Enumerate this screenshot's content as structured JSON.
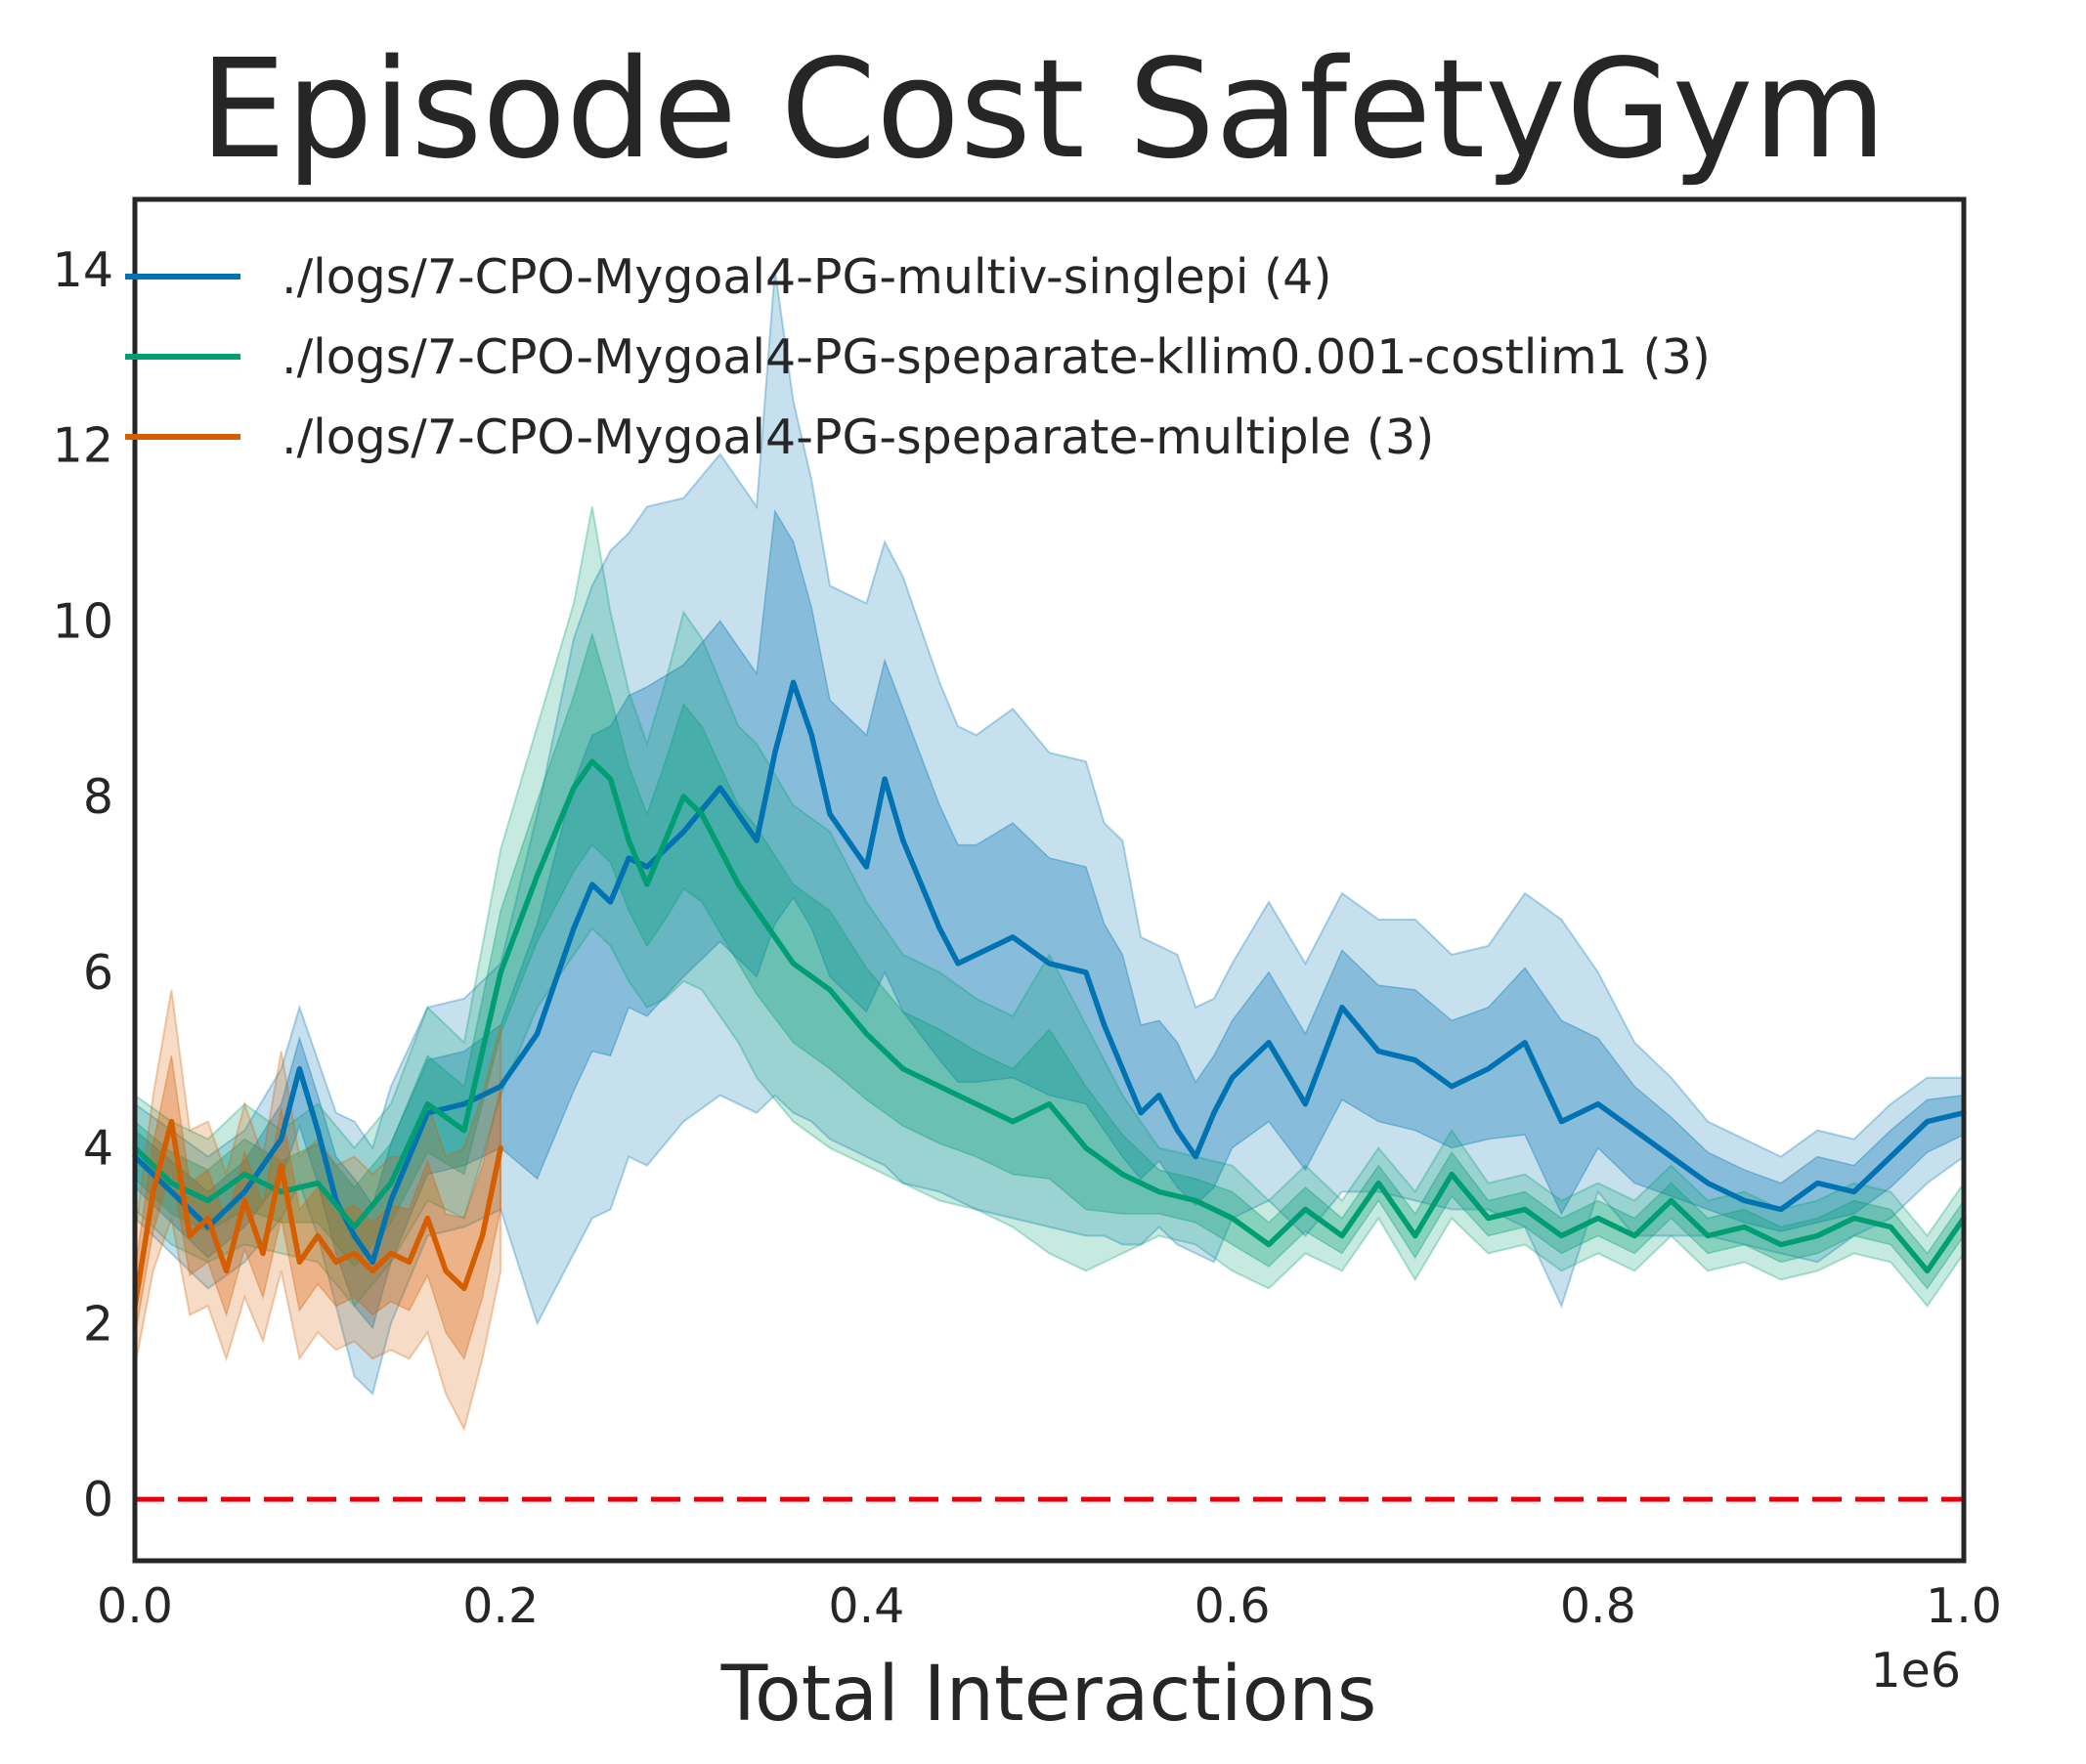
{
  "chart_data": {
    "type": "line",
    "title": "Episode Cost SafetyGym",
    "xlabel": "Total Interactions",
    "ylabel": "",
    "x_offset_label": "1e6",
    "xlim": [
      0.0,
      1.0
    ],
    "ylim": [
      -0.7,
      14.8
    ],
    "x_ticks": [
      "0.0",
      "0.2",
      "0.4",
      "0.6",
      "0.8",
      "1.0"
    ],
    "y_ticks": [
      "0",
      "2",
      "4",
      "6",
      "8",
      "10",
      "12",
      "14"
    ],
    "grid": false,
    "legend_position": "top-left",
    "reference_line": {
      "y": 0,
      "color": "#e8000b",
      "style": "dashed"
    },
    "series": [
      {
        "name": "./logs/7-CPO-Mygoal4-PG-multiv-singlepi (4)",
        "color": "#0173b2",
        "x": [
          0.0,
          0.02,
          0.04,
          0.06,
          0.08,
          0.09,
          0.1,
          0.11,
          0.12,
          0.13,
          0.14,
          0.16,
          0.18,
          0.2,
          0.22,
          0.24,
          0.25,
          0.26,
          0.27,
          0.28,
          0.3,
          0.32,
          0.34,
          0.35,
          0.36,
          0.37,
          0.38,
          0.4,
          0.41,
          0.42,
          0.44,
          0.45,
          0.46,
          0.48,
          0.5,
          0.52,
          0.53,
          0.54,
          0.55,
          0.56,
          0.57,
          0.58,
          0.59,
          0.6,
          0.62,
          0.64,
          0.66,
          0.68,
          0.7,
          0.72,
          0.74,
          0.76,
          0.78,
          0.8,
          0.82,
          0.84,
          0.86,
          0.88,
          0.9,
          0.92,
          0.94,
          0.96,
          0.98,
          1.0
        ],
        "values": [
          3.9,
          3.5,
          3.1,
          3.5,
          4.1,
          4.9,
          4.2,
          3.4,
          3.0,
          2.7,
          3.4,
          4.4,
          4.5,
          4.7,
          5.3,
          6.5,
          7.0,
          6.8,
          7.3,
          7.2,
          7.6,
          8.1,
          7.5,
          8.5,
          9.3,
          8.7,
          7.8,
          7.2,
          8.2,
          7.5,
          6.5,
          6.1,
          6.2,
          6.4,
          6.1,
          6.0,
          5.4,
          4.9,
          4.4,
          4.6,
          4.2,
          3.9,
          4.4,
          4.8,
          5.2,
          4.5,
          5.6,
          5.1,
          5.0,
          4.7,
          4.9,
          5.2,
          4.3,
          4.5,
          4.2,
          3.9,
          3.6,
          3.4,
          3.3,
          3.6,
          3.5,
          3.9,
          4.3,
          4.4
        ],
        "lower": [
          3.2,
          2.8,
          2.4,
          2.7,
          3.2,
          3.6,
          3.0,
          2.2,
          1.4,
          1.2,
          2.0,
          3.0,
          3.1,
          3.3,
          2.0,
          2.8,
          3.2,
          3.3,
          3.9,
          3.8,
          4.3,
          4.6,
          4.4,
          4.6,
          4.4,
          4.3,
          4.1,
          3.9,
          3.8,
          3.6,
          3.5,
          3.4,
          3.3,
          3.2,
          3.1,
          3.0,
          3.0,
          2.9,
          2.9,
          3.1,
          2.9,
          2.8,
          2.7,
          3.2,
          3.4,
          3.0,
          3.5,
          3.5,
          3.4,
          3.3,
          3.3,
          3.1,
          2.2,
          3.5,
          3.0,
          3.0,
          3.0,
          2.9,
          2.8,
          2.7,
          3.0,
          3.2,
          3.6,
          3.9
        ],
        "upper": [
          4.5,
          4.2,
          3.9,
          4.2,
          4.9,
          5.6,
          5.0,
          4.4,
          4.3,
          4.0,
          4.7,
          5.6,
          5.7,
          6.1,
          7.8,
          9.8,
          10.4,
          10.8,
          11.0,
          11.3,
          11.4,
          11.9,
          11.3,
          14.0,
          12.5,
          11.6,
          10.4,
          10.2,
          10.9,
          10.5,
          9.3,
          8.8,
          8.7,
          9.0,
          8.5,
          8.4,
          7.7,
          7.5,
          6.4,
          6.3,
          6.2,
          5.6,
          5.7,
          6.1,
          6.8,
          6.1,
          6.9,
          6.6,
          6.6,
          6.2,
          6.3,
          6.9,
          6.6,
          6.0,
          5.2,
          4.8,
          4.3,
          4.1,
          3.9,
          4.2,
          4.1,
          4.5,
          4.8,
          4.8
        ]
      },
      {
        "name": "./logs/7-CPO-Mygoal4-PG-speparate-kllim0.001-costlim1 (3)",
        "color": "#029e73",
        "x": [
          0.0,
          0.02,
          0.04,
          0.06,
          0.08,
          0.1,
          0.12,
          0.14,
          0.16,
          0.18,
          0.2,
          0.22,
          0.23,
          0.24,
          0.25,
          0.26,
          0.27,
          0.28,
          0.29,
          0.3,
          0.31,
          0.32,
          0.33,
          0.34,
          0.36,
          0.38,
          0.4,
          0.42,
          0.44,
          0.46,
          0.48,
          0.5,
          0.52,
          0.54,
          0.56,
          0.58,
          0.6,
          0.62,
          0.64,
          0.66,
          0.68,
          0.7,
          0.72,
          0.74,
          0.76,
          0.78,
          0.8,
          0.82,
          0.84,
          0.86,
          0.88,
          0.9,
          0.92,
          0.94,
          0.96,
          0.98,
          1.0
        ],
        "values": [
          4.0,
          3.6,
          3.4,
          3.7,
          3.5,
          3.6,
          3.1,
          3.6,
          4.5,
          4.2,
          6.0,
          7.1,
          7.6,
          8.1,
          8.4,
          8.2,
          7.5,
          7.0,
          7.5,
          8.0,
          7.8,
          7.4,
          7.0,
          6.7,
          6.1,
          5.8,
          5.3,
          4.9,
          4.7,
          4.5,
          4.3,
          4.5,
          4.0,
          3.7,
          3.5,
          3.4,
          3.2,
          2.9,
          3.3,
          3.0,
          3.6,
          3.0,
          3.7,
          3.2,
          3.3,
          3.0,
          3.2,
          3.0,
          3.4,
          3.0,
          3.1,
          2.9,
          3.0,
          3.2,
          3.1,
          2.6,
          3.2
        ],
        "lower": [
          3.3,
          2.9,
          2.7,
          2.9,
          2.8,
          2.7,
          2.2,
          2.7,
          3.4,
          3.2,
          4.6,
          5.6,
          5.9,
          6.2,
          6.5,
          6.3,
          5.9,
          5.6,
          5.7,
          5.9,
          5.8,
          5.5,
          5.2,
          4.8,
          4.3,
          4.0,
          3.8,
          3.6,
          3.4,
          3.3,
          3.1,
          2.8,
          2.6,
          2.8,
          3.0,
          2.9,
          2.6,
          2.4,
          2.8,
          2.6,
          3.2,
          2.5,
          3.2,
          2.8,
          2.9,
          2.6,
          2.8,
          2.6,
          3.0,
          2.6,
          2.7,
          2.5,
          2.6,
          2.8,
          2.7,
          2.2,
          2.8
        ],
        "upper": [
          4.6,
          4.3,
          4.1,
          4.5,
          4.2,
          4.5,
          4.0,
          4.5,
          5.6,
          5.2,
          7.4,
          8.8,
          9.5,
          10.2,
          11.3,
          10.1,
          9.2,
          8.6,
          9.3,
          10.1,
          9.8,
          9.3,
          8.8,
          8.6,
          7.9,
          7.6,
          6.8,
          6.2,
          6.0,
          5.7,
          5.5,
          6.2,
          5.4,
          4.6,
          4.0,
          3.9,
          3.8,
          3.4,
          3.8,
          3.4,
          4.0,
          3.5,
          4.2,
          3.6,
          3.7,
          3.4,
          3.6,
          3.4,
          3.8,
          3.4,
          3.5,
          3.3,
          3.4,
          3.6,
          3.5,
          3.0,
          3.6
        ]
      },
      {
        "name": "./logs/7-CPO-Mygoal4-PG-speparate-multiple (3)",
        "color": "#d55e00",
        "x": [
          0.0,
          0.01,
          0.02,
          0.03,
          0.04,
          0.05,
          0.06,
          0.07,
          0.08,
          0.09,
          0.1,
          0.11,
          0.12,
          0.13,
          0.14,
          0.15,
          0.16,
          0.17,
          0.18,
          0.19,
          0.2
        ],
        "values": [
          2.2,
          3.5,
          4.3,
          3.0,
          3.2,
          2.6,
          3.4,
          2.8,
          3.8,
          2.7,
          3.0,
          2.7,
          2.8,
          2.6,
          2.8,
          2.7,
          3.2,
          2.6,
          2.4,
          3.0,
          4.0
        ],
        "lower": [
          1.5,
          2.6,
          3.2,
          2.1,
          2.2,
          1.6,
          2.3,
          1.8,
          2.6,
          1.6,
          1.9,
          1.7,
          1.8,
          1.6,
          1.7,
          1.6,
          1.9,
          1.2,
          0.8,
          1.6,
          2.6
        ],
        "upper": [
          3.0,
          4.6,
          5.8,
          4.2,
          4.3,
          3.7,
          4.5,
          3.9,
          5.1,
          3.9,
          4.1,
          3.8,
          3.9,
          3.7,
          3.9,
          3.9,
          4.5,
          3.9,
          4.0,
          4.6,
          5.4
        ]
      }
    ]
  }
}
